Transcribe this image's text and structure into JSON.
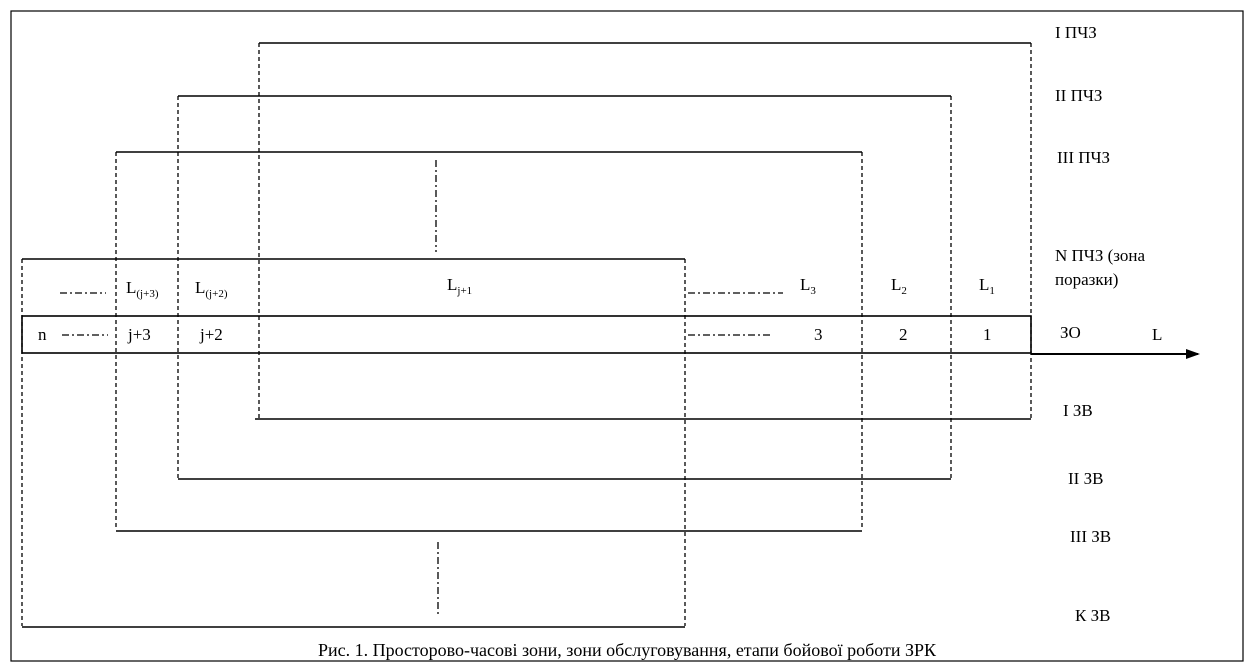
{
  "zones_right": {
    "pchz_1": "I ПЧЗ",
    "pchz_2": "II ПЧЗ",
    "pchz_3": "III ПЧЗ",
    "pchz_n_line1": "N ПЧЗ (зона",
    "pchz_n_line2": "поразки)",
    "zo": "ЗО",
    "zv_1": "І ЗВ",
    "zv_2": "ІІ ЗВ",
    "zv_3": "ІІІ ЗВ",
    "zv_k": "К ЗВ"
  },
  "axis": {
    "label": "L"
  },
  "segment_labels": {
    "l_j3": {
      "base": "L",
      "sub": "(j+3)"
    },
    "l_j2": {
      "base": "L",
      "sub": "(j+2)"
    },
    "l_j1": {
      "base": "L",
      "sub": "j+1"
    },
    "l_3": {
      "base": "L",
      "sub": "3"
    },
    "l_2": {
      "base": "L",
      "sub": "2"
    },
    "l_1": {
      "base": "L",
      "sub": "1"
    }
  },
  "cells": {
    "n": "n",
    "j3": "j+3",
    "j2": "j+2",
    "c3": "3",
    "c2": "2",
    "c1": "1"
  },
  "caption": "Рис. 1. Просторово-часові зони, зони обслуговування, етапи бойової роботи ЗРК"
}
